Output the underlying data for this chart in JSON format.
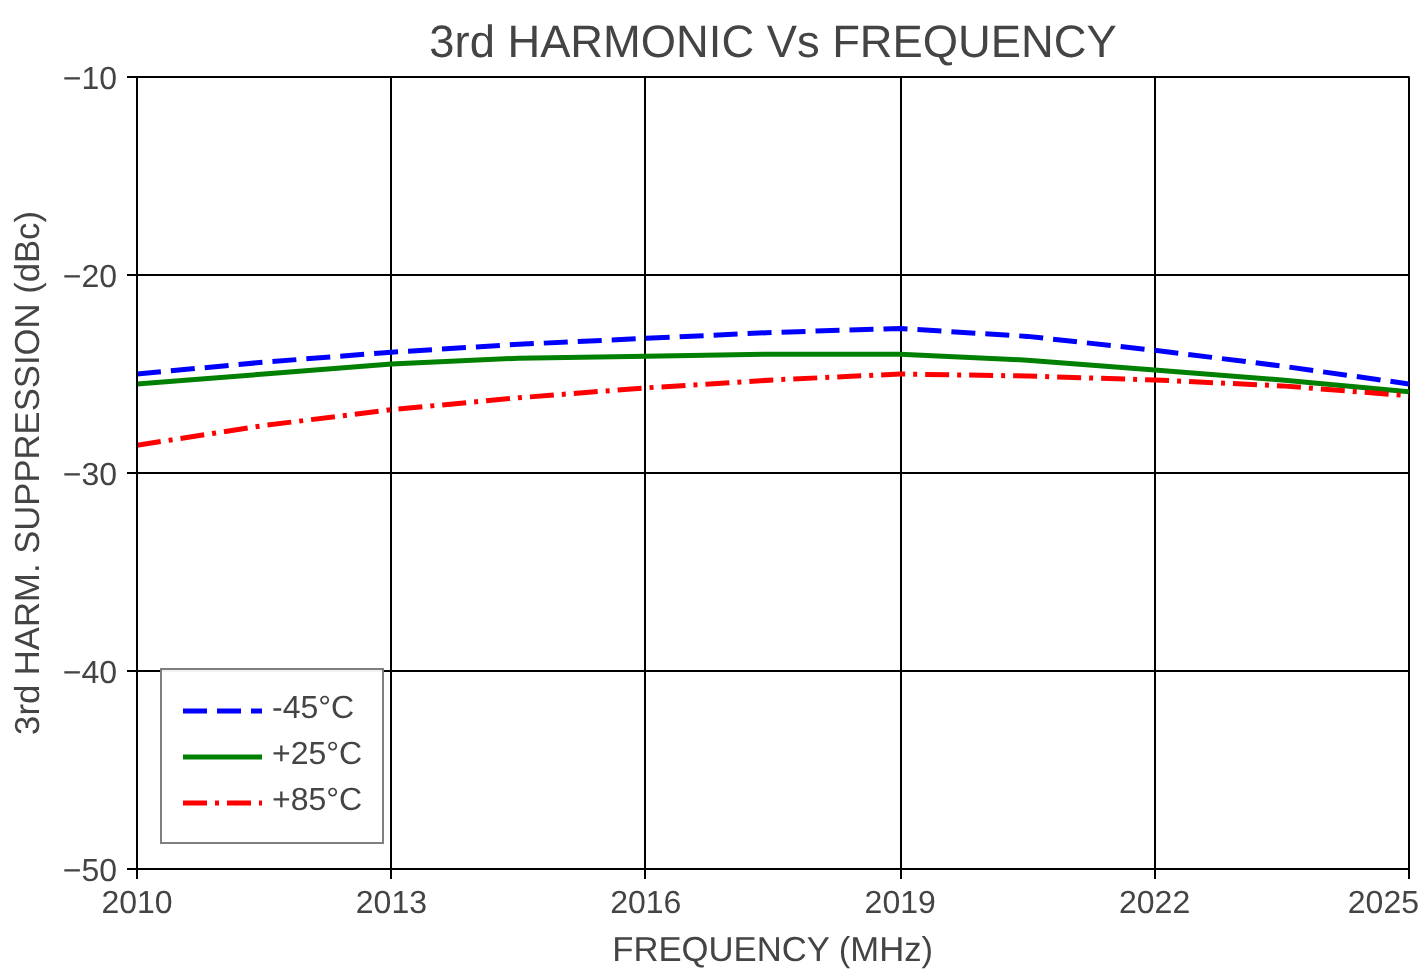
{
  "chart_data": {
    "type": "line",
    "title": "3rd HARMONIC Vs FREQUENCY",
    "xlabel": "FREQUENCY (MHz)",
    "ylabel": "3rd HARM. SUPPRESSION (dBc)",
    "x": [
      2010,
      2011.5,
      2013,
      2014.5,
      2016,
      2017.5,
      2019,
      2020.5,
      2022,
      2023.5,
      2025
    ],
    "series": [
      {
        "name": "-45°C",
        "color": "#0000ff",
        "line_style": "dashed",
        "values": [
          -25.0,
          -24.4,
          -23.9,
          -23.5,
          -23.2,
          -22.9,
          -22.7,
          -23.1,
          -23.8,
          -24.6,
          -25.5
        ]
      },
      {
        "name": "+25°C",
        "color": "#008000",
        "line_style": "solid",
        "values": [
          -25.5,
          -25.0,
          -24.5,
          -24.2,
          -24.1,
          -24.0,
          -24.0,
          -24.3,
          -24.8,
          -25.3,
          -25.9
        ]
      },
      {
        "name": "+85°C",
        "color": "#ff0000",
        "line_style": "dashdot",
        "values": [
          -28.6,
          -27.6,
          -26.8,
          -26.2,
          -25.7,
          -25.3,
          -25.0,
          -25.1,
          -25.3,
          -25.6,
          -26.1
        ]
      }
    ],
    "xlim": [
      2010,
      2025
    ],
    "xticks": [
      2010,
      2013,
      2016,
      2019,
      2022,
      2025
    ],
    "ylim": [
      -50,
      -10
    ],
    "yticks": [
      -50,
      -40,
      -30,
      -20,
      -10
    ],
    "grid": true,
    "legend": "bottom left",
    "marker": "none"
  }
}
